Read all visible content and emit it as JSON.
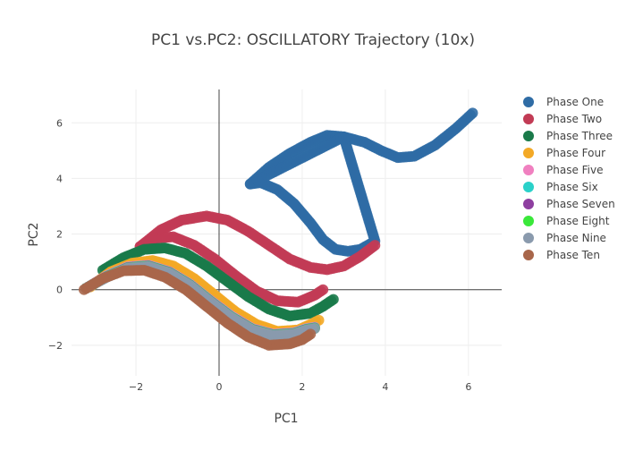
{
  "chart_data": {
    "type": "scatter",
    "title": "PC1 vs.PC2: OSCILLATORY Trajectory (10x)",
    "xlabel": "PC1",
    "ylabel": "PC2",
    "xlim": [
      -3.55,
      6.8
    ],
    "ylim": [
      -3.1,
      7.2
    ],
    "x_ticks": [
      -2,
      0,
      2,
      4,
      6
    ],
    "y_ticks": [
      -2,
      0,
      2,
      4,
      6
    ],
    "x_tick_labels": [
      "−2",
      "0",
      "2",
      "4",
      "6"
    ],
    "y_tick_labels": [
      "−2",
      "0",
      "2",
      "4",
      "6"
    ],
    "grid": true,
    "zero_lines": true,
    "legend_position": "top-right",
    "series": [
      {
        "name": "Phase One",
        "color": "#2f6ca5",
        "points": [
          [
            0.75,
            3.8
          ],
          [
            1.0,
            3.85
          ],
          [
            1.4,
            3.6
          ],
          [
            1.8,
            3.1
          ],
          [
            2.2,
            2.4
          ],
          [
            2.5,
            1.8
          ],
          [
            2.8,
            1.45
          ],
          [
            3.1,
            1.38
          ],
          [
            3.4,
            1.45
          ],
          [
            3.7,
            1.7
          ],
          [
            3.75,
            1.75
          ],
          [
            3.0,
            5.5
          ],
          [
            2.6,
            5.55
          ],
          [
            2.2,
            5.3
          ],
          [
            1.7,
            4.9
          ],
          [
            1.2,
            4.4
          ],
          [
            0.75,
            3.8
          ],
          [
            3.0,
            5.5
          ],
          [
            3.5,
            5.3
          ],
          [
            3.9,
            5.0
          ],
          [
            4.3,
            4.75
          ],
          [
            4.7,
            4.8
          ],
          [
            5.2,
            5.2
          ],
          [
            5.7,
            5.8
          ],
          [
            6.1,
            6.35
          ]
        ]
      },
      {
        "name": "Phase Two",
        "color": "#c23b55",
        "points": [
          [
            -1.9,
            1.55
          ],
          [
            -1.4,
            2.15
          ],
          [
            -0.9,
            2.5
          ],
          [
            -0.3,
            2.65
          ],
          [
            0.2,
            2.5
          ],
          [
            0.7,
            2.1
          ],
          [
            1.2,
            1.6
          ],
          [
            1.7,
            1.1
          ],
          [
            2.2,
            0.8
          ],
          [
            2.6,
            0.72
          ],
          [
            3.0,
            0.85
          ],
          [
            3.4,
            1.2
          ],
          [
            3.8,
            1.65
          ],
          [
            -1.9,
            1.55
          ],
          [
            -1.5,
            1.85
          ],
          [
            -1.1,
            1.9
          ],
          [
            -0.6,
            1.6
          ],
          [
            -0.1,
            1.1
          ],
          [
            0.4,
            0.5
          ],
          [
            0.9,
            -0.05
          ],
          [
            1.4,
            -0.4
          ],
          [
            1.9,
            -0.45
          ],
          [
            2.3,
            -0.2
          ],
          [
            2.5,
            0.0
          ]
        ]
      },
      {
        "name": "Phase Three",
        "color": "#1a7a4a",
        "points": [
          [
            -2.8,
            0.7
          ],
          [
            -2.3,
            1.15
          ],
          [
            -1.8,
            1.45
          ],
          [
            -1.3,
            1.5
          ],
          [
            -0.8,
            1.3
          ],
          [
            -0.3,
            0.85
          ],
          [
            0.2,
            0.3
          ],
          [
            0.7,
            -0.25
          ],
          [
            1.2,
            -0.7
          ],
          [
            1.7,
            -0.95
          ],
          [
            2.2,
            -0.85
          ],
          [
            2.5,
            -0.6
          ],
          [
            2.75,
            -0.35
          ]
        ]
      },
      {
        "name": "Phase Four",
        "color": "#f3a926",
        "points": [
          [
            -3.1,
            0.1
          ],
          [
            -2.6,
            0.65
          ],
          [
            -2.1,
            0.95
          ],
          [
            -1.6,
            1.05
          ],
          [
            -1.1,
            0.85
          ],
          [
            -0.6,
            0.4
          ],
          [
            -0.1,
            -0.2
          ],
          [
            0.4,
            -0.8
          ],
          [
            0.9,
            -1.25
          ],
          [
            1.4,
            -1.5
          ],
          [
            1.9,
            -1.45
          ],
          [
            2.2,
            -1.25
          ],
          [
            2.4,
            -1.1
          ]
        ]
      },
      {
        "name": "Phase Five",
        "color": "#f080c0",
        "points": [
          [
            -3.2,
            0.05
          ],
          [
            -2.7,
            0.5
          ],
          [
            -2.2,
            0.82
          ],
          [
            -1.7,
            0.88
          ],
          [
            -1.2,
            0.65
          ],
          [
            -0.7,
            0.2
          ],
          [
            -0.2,
            -0.4
          ],
          [
            0.3,
            -0.95
          ],
          [
            0.8,
            -1.4
          ],
          [
            1.3,
            -1.6
          ],
          [
            1.8,
            -1.55
          ],
          [
            2.1,
            -1.4
          ],
          [
            2.3,
            -1.35
          ]
        ]
      },
      {
        "name": "Phase Six",
        "color": "#2ad1c9",
        "points": [
          [
            -3.2,
            0.05
          ],
          [
            -2.7,
            0.48
          ],
          [
            -2.2,
            0.8
          ],
          [
            -1.7,
            0.86
          ],
          [
            -1.2,
            0.63
          ],
          [
            -0.7,
            0.18
          ],
          [
            -0.2,
            -0.42
          ],
          [
            0.3,
            -0.98
          ],
          [
            0.8,
            -1.42
          ],
          [
            1.3,
            -1.62
          ],
          [
            1.8,
            -1.57
          ],
          [
            2.1,
            -1.42
          ],
          [
            2.3,
            -1.37
          ]
        ]
      },
      {
        "name": "Phase Seven",
        "color": "#8e3fa0",
        "points": [
          [
            -3.2,
            0.05
          ],
          [
            -2.7,
            0.47
          ],
          [
            -2.2,
            0.79
          ],
          [
            -1.7,
            0.85
          ],
          [
            -1.2,
            0.62
          ],
          [
            -0.7,
            0.17
          ],
          [
            -0.2,
            -0.43
          ],
          [
            0.3,
            -0.99
          ],
          [
            0.8,
            -1.43
          ],
          [
            1.3,
            -1.63
          ],
          [
            1.8,
            -1.58
          ],
          [
            2.1,
            -1.43
          ],
          [
            2.3,
            -1.38
          ]
        ]
      },
      {
        "name": "Phase Eight",
        "color": "#3ae83a",
        "points": [
          [
            -3.2,
            0.05
          ],
          [
            -2.7,
            0.46
          ],
          [
            -2.2,
            0.78
          ],
          [
            -1.7,
            0.84
          ],
          [
            -1.2,
            0.61
          ],
          [
            -0.7,
            0.16
          ],
          [
            -0.2,
            -0.44
          ],
          [
            0.3,
            -1.0
          ],
          [
            0.8,
            -1.44
          ],
          [
            1.3,
            -1.64
          ],
          [
            1.8,
            -1.59
          ],
          [
            2.1,
            -1.44
          ],
          [
            2.3,
            -1.39
          ]
        ]
      },
      {
        "name": "Phase Nine",
        "color": "#8a9aad",
        "points": [
          [
            -3.2,
            0.05
          ],
          [
            -2.7,
            0.45
          ],
          [
            -2.2,
            0.77
          ],
          [
            -1.7,
            0.83
          ],
          [
            -1.2,
            0.6
          ],
          [
            -0.7,
            0.15
          ],
          [
            -0.2,
            -0.45
          ],
          [
            0.3,
            -1.01
          ],
          [
            0.8,
            -1.45
          ],
          [
            1.3,
            -1.65
          ],
          [
            1.8,
            -1.6
          ],
          [
            2.1,
            -1.45
          ],
          [
            2.3,
            -1.4
          ]
        ]
      },
      {
        "name": "Phase Ten",
        "color": "#a8664a",
        "points": [
          [
            -3.25,
            0.0
          ],
          [
            -2.8,
            0.4
          ],
          [
            -2.3,
            0.68
          ],
          [
            -1.8,
            0.7
          ],
          [
            -1.3,
            0.45
          ],
          [
            -0.8,
            0.0
          ],
          [
            -0.3,
            -0.6
          ],
          [
            0.2,
            -1.2
          ],
          [
            0.7,
            -1.7
          ],
          [
            1.2,
            -2.0
          ],
          [
            1.7,
            -1.95
          ],
          [
            2.0,
            -1.8
          ],
          [
            2.2,
            -1.6
          ]
        ]
      }
    ]
  }
}
